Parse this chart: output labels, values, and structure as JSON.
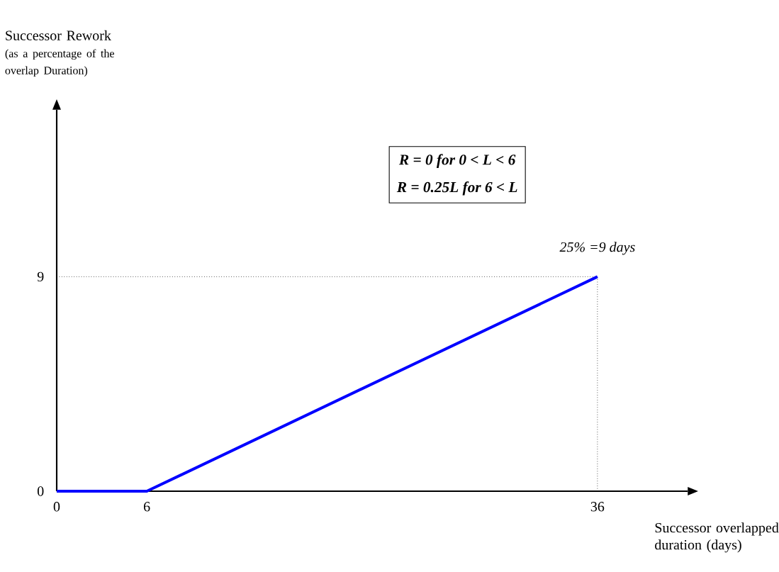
{
  "chart_data": {
    "type": "line",
    "xlabel": "Successor overlapped duration (days)",
    "ylabel": "Successor Rework",
    "x": [
      0,
      6,
      36
    ],
    "series": [
      {
        "color": "#0000ff",
        "values": [
          0,
          0,
          9
        ]
      }
    ],
    "xlim": [
      0,
      42
    ],
    "ylim": [
      0,
      16
    ],
    "xticks": [
      0,
      6,
      36
    ],
    "yticks": [
      0,
      9
    ],
    "ref_lines": [
      {
        "axis": "y",
        "value": 9,
        "color": "#000000",
        "line_style": "dotted"
      },
      {
        "axis": "x",
        "value": 36,
        "color": "#000000",
        "line_style": "dotted"
      }
    ],
    "annotations": [
      "(as a percentage of the overlap Duration)",
      {
        "text": "25% =9 days",
        "x": 36,
        "y": 9
      },
      "R = 0 for 0 < L < 6",
      "R = 0.25L for 6 < L"
    ]
  }
}
